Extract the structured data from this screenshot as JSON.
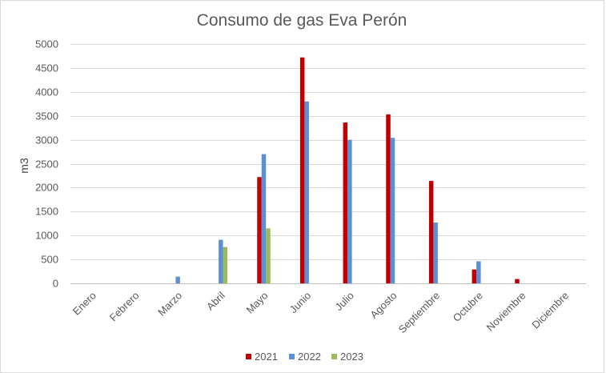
{
  "chart_data": {
    "type": "bar",
    "title": "Consumo de gas Eva Perón",
    "xlabel": "",
    "ylabel": "m3",
    "ylim": [
      0,
      5000
    ],
    "yticks": [
      0,
      500,
      1000,
      1500,
      2000,
      2500,
      3000,
      3500,
      4000,
      4500,
      5000
    ],
    "grid": true,
    "legend_position": "bottom",
    "categories": [
      "Enero",
      "Febrero",
      "Marzo",
      "Abril",
      "Mayo",
      "Junio",
      "Julio",
      "Agosto",
      "Septiembre",
      "Octubre",
      "Noviembre",
      "Diciembre"
    ],
    "series": [
      {
        "name": "2021",
        "color": "#c00000",
        "values": [
          0,
          0,
          0,
          0,
          2220,
          4720,
          3360,
          3530,
          2140,
          290,
          90,
          0
        ]
      },
      {
        "name": "2022",
        "color": "#5b8fd6",
        "values": [
          0,
          0,
          140,
          910,
          2700,
          3800,
          3000,
          3040,
          1270,
          460,
          0,
          0
        ]
      },
      {
        "name": "2023",
        "color": "#9bbb59",
        "values": [
          0,
          0,
          0,
          760,
          1150,
          0,
          0,
          0,
          0,
          0,
          0,
          0
        ]
      }
    ]
  }
}
